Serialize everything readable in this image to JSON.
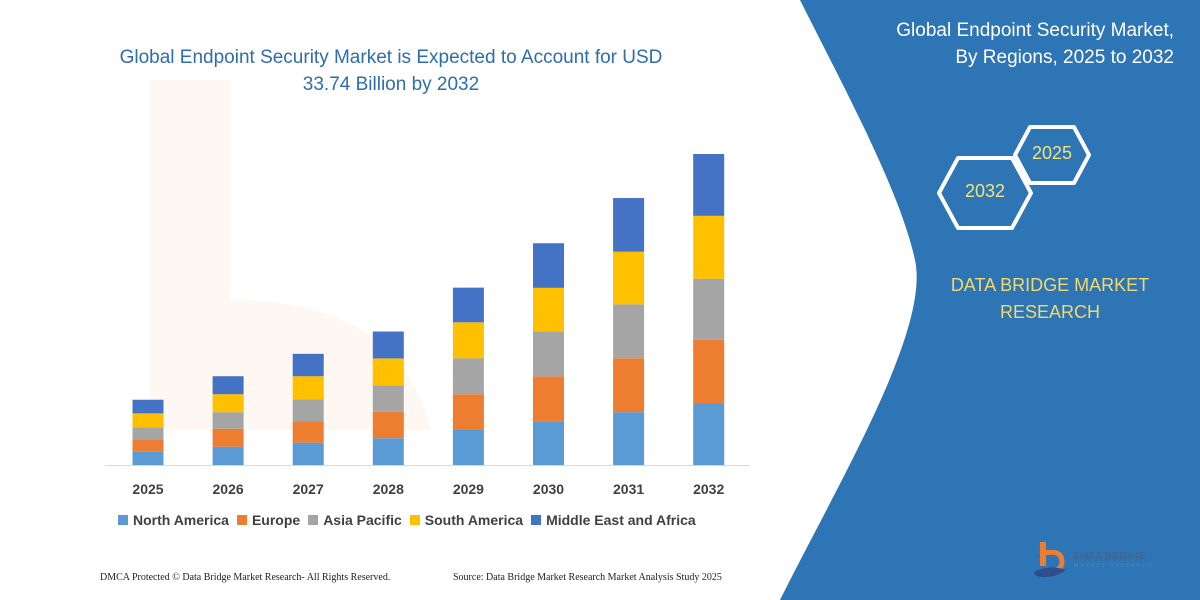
{
  "colors": {
    "panel": "#2e75b6",
    "title": "#2e6dad",
    "hex_text": "#f3e27a",
    "brand_text": "#f3d86a"
  },
  "chart_data": {
    "type": "bar",
    "stacked": true,
    "title": "Global Endpoint Security Market is Expected to Account for USD 33.74 Billion by 2032",
    "title_lines": [
      "Global Endpoint Security Market is Expected to Account for USD",
      "33.74 Billion by 2032"
    ],
    "xlabel": "",
    "ylabel": "",
    "grid": false,
    "y_axis_shown": false,
    "legend_position": "bottom",
    "categories": [
      "2025",
      "2026",
      "2027",
      "2028",
      "2029",
      "2030",
      "2031",
      "2032"
    ],
    "series": [
      {
        "name": "North America",
        "color": "#5b9bd5",
        "values": [
          1.44,
          1.98,
          2.42,
          2.91,
          3.86,
          4.75,
          5.73,
          6.67
        ]
      },
      {
        "name": "Europe",
        "color": "#ed7d31",
        "values": [
          1.34,
          1.95,
          2.34,
          2.85,
          3.82,
          4.87,
          5.85,
          6.9
        ]
      },
      {
        "name": "Asia Pacific",
        "color": "#a5a5a5",
        "values": [
          1.3,
          1.8,
          2.38,
          2.88,
          3.9,
          4.87,
          5.85,
          6.64
        ]
      },
      {
        "name": "South America",
        "color": "#ffc000",
        "values": [
          1.52,
          1.95,
          2.49,
          2.92,
          3.9,
          4.73,
          5.71,
          6.82
        ]
      },
      {
        "name": "Middle East and Africa",
        "color": "#4472c4",
        "values": [
          1.48,
          1.95,
          2.43,
          2.92,
          3.76,
          4.84,
          5.82,
          6.71
        ]
      }
    ],
    "ylim": [
      0,
      33.74
    ]
  },
  "side": {
    "title_lines": [
      "Global Endpoint Security Market,",
      "By Regions, 2025 to 2032"
    ],
    "hex_start": "2025",
    "hex_end": "2032",
    "brand_lines": [
      "DATA BRIDGE MARKET",
      "RESEARCH"
    ],
    "logo_text": "DATA BRIDGE",
    "logo_sub": "MARKET RESEARCH"
  },
  "footer": {
    "copyright": "DMCA Protected © Data Bridge Market Research-  All Rights Reserved.",
    "source": "Source: Data Bridge Market Research  Market Analysis Study 2025"
  }
}
